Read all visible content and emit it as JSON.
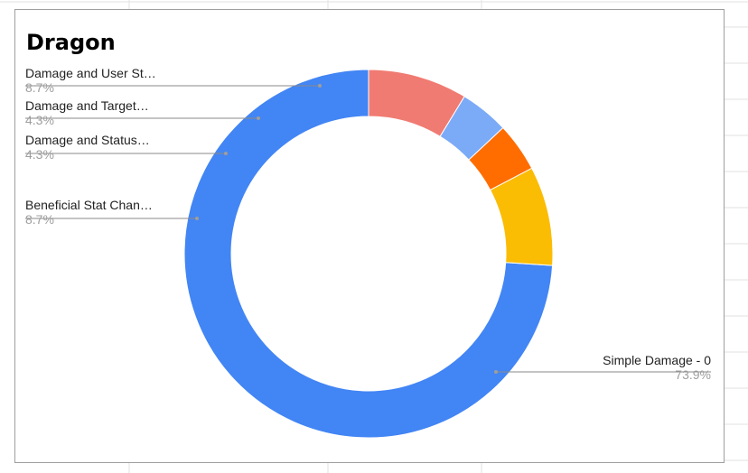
{
  "chart_data": {
    "type": "pie",
    "donut": true,
    "title": "Dragon",
    "slices": [
      {
        "label": "Simple Damage - 0",
        "display_label": "Simple Damage - 0",
        "percent": "73.9%",
        "value": 73.9,
        "color": "#4285f4"
      },
      {
        "label": "Beneficial Stat Chan…",
        "display_label": "Beneficial Stat Chan…",
        "percent": "8.7%",
        "value": 8.7,
        "color": "#fbbc04"
      },
      {
        "label": "Damage and Status…",
        "display_label": "Damage and Status…",
        "percent": "4.3%",
        "value": 4.3,
        "color": "#ff6d01"
      },
      {
        "label": "Damage and Target…",
        "display_label": "Damage and Target…",
        "percent": "4.3%",
        "value": 4.3,
        "color": "#7baaf7"
      },
      {
        "label": "Damage and User St…",
        "display_label": "Damage and User St…",
        "percent": "8.7%",
        "value": 8.7,
        "color": "#f07b72"
      }
    ],
    "legend": "none"
  }
}
